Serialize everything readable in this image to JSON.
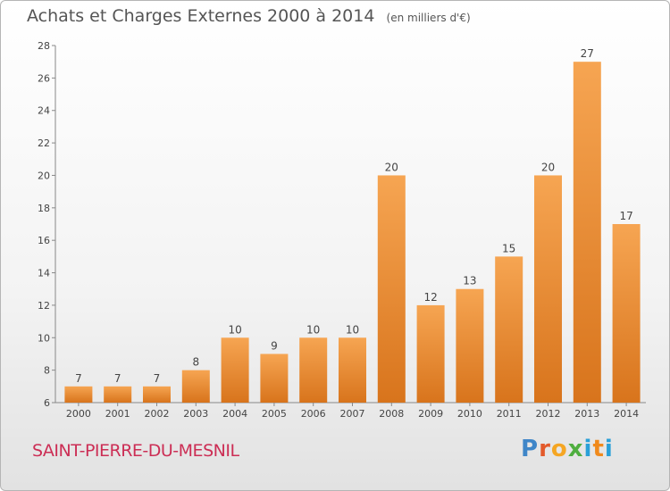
{
  "header": {
    "title": "Achats et Charges Externes 2000 à 2014",
    "subtitle": "(en milliers d'€)"
  },
  "footer": {
    "commune": "SAINT-PIERRE-DU-MESNIL",
    "logo_text": "Proxiti"
  },
  "colors": {
    "bar_top": "#f6a552",
    "bar_bottom": "#d8741c",
    "commune": "#cc2e55",
    "text": "#555555"
  },
  "chart_data": {
    "type": "bar",
    "title": "Achats et Charges Externes 2000 à 2014",
    "subtitle": "(en milliers d'€)",
    "xlabel": "",
    "ylabel": "",
    "categories": [
      "2000",
      "2001",
      "2002",
      "2003",
      "2004",
      "2005",
      "2006",
      "2007",
      "2008",
      "2009",
      "2010",
      "2011",
      "2012",
      "2013",
      "2014"
    ],
    "values": [
      7,
      7,
      7,
      8,
      10,
      9,
      10,
      10,
      20,
      12,
      13,
      15,
      20,
      27,
      17
    ],
    "ylim": [
      6,
      28
    ],
    "yticks": [
      6,
      8,
      10,
      12,
      14,
      16,
      18,
      20,
      22,
      24,
      26,
      28
    ],
    "grid": false,
    "legend": "none",
    "data_labels": true
  }
}
